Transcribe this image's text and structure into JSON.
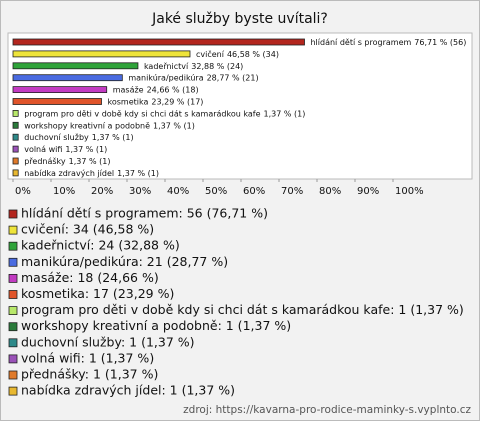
{
  "chart_data": {
    "type": "bar",
    "orientation": "horizontal",
    "title": "Jaké služby byste uvítali?",
    "categories": [
      "hlídání dětí s programem",
      "cvičení",
      "kadeřnictví",
      "manikúra/pedikúra",
      "masáže",
      "kosmetika",
      "program pro děti v době kdy si chci dát s kamarádkou kafe",
      "workshopy kreativní a podobně",
      "duchovní služby",
      "volná wifi",
      "přednášky",
      "nabídka zdravých jídel"
    ],
    "values": [
      76.71,
      46.58,
      32.88,
      28.77,
      24.66,
      23.29,
      1.37,
      1.37,
      1.37,
      1.37,
      1.37,
      1.37
    ],
    "value_labels": [
      "76,71 % (56)",
      "46,58 % (34)",
      "32,88 % (24)",
      "28,77 % (21)",
      "24,66 % (18)",
      "23,29 % (17)",
      "1,37 % (1)",
      "1,37 % (1)",
      "1,37 % (1)",
      "1,37 % (1)",
      "1,37 % (1)",
      "1,37 % (1)"
    ],
    "colors": [
      "#b3261e",
      "#eee43a",
      "#2fa33a",
      "#4a6be0",
      "#c23bc2",
      "#e0542a",
      "#b8e86a",
      "#2a7a3a",
      "#2e8a8a",
      "#9a52b8",
      "#e07a2a",
      "#e8b830"
    ],
    "xlim": [
      0,
      100
    ],
    "xticks": [
      {
        "value": 0,
        "label": "0%"
      },
      {
        "value": 10,
        "label": "10%"
      },
      {
        "value": 20,
        "label": "20%"
      },
      {
        "value": 30,
        "label": "30%"
      },
      {
        "value": 40,
        "label": "40%"
      },
      {
        "value": 50,
        "label": "50%"
      },
      {
        "value": 60,
        "label": "60%"
      },
      {
        "value": 70,
        "label": "70%"
      },
      {
        "value": 80,
        "label": "80%"
      },
      {
        "value": 90,
        "label": "90%"
      },
      {
        "value": 100,
        "label": "100%"
      }
    ],
    "legend_labels": [
      "hlídání dětí s programem: 56 (76,71 %)",
      "cvičení: 34 (46,58 %)",
      "kadeřnictví: 24 (32,88 %)",
      "manikúra/pedikúra: 21 (28,77 %)",
      "masáže: 18 (24,66 %)",
      "kosmetika: 17 (23,29 %)",
      "program pro děti v době kdy si chci dát s kamarádkou kafe: 1 (1,37 %)",
      "workshopy kreativní a podobně: 1 (1,37 %)",
      "duchovní služby: 1 (1,37 %)",
      "volná wifi: 1 (1,37 %)",
      "přednášky: 1 (1,37 %)",
      "nabídka zdravých jídel: 1 (1,37 %)"
    ],
    "source": "zdroj: https://kavarna-pro-rodice-maminky-s.vyplnto.cz"
  }
}
